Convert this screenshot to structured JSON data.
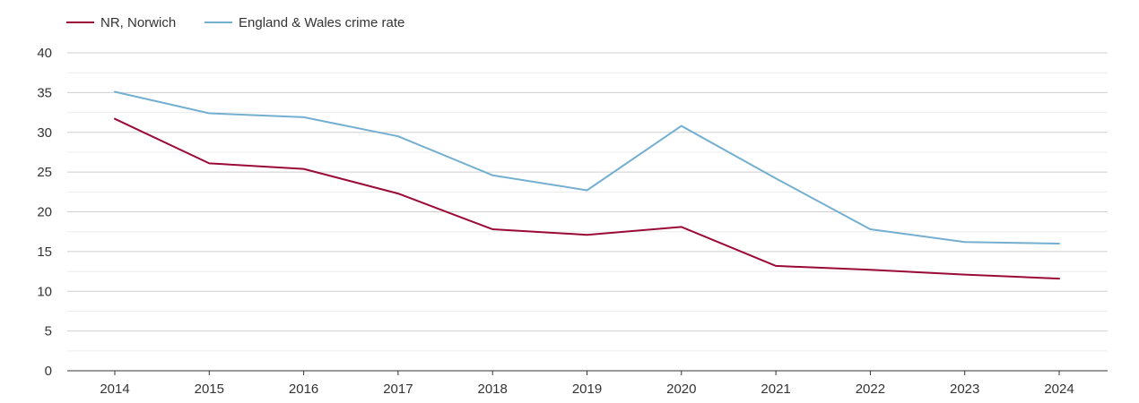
{
  "chart_data": {
    "type": "line",
    "title": "",
    "xlabel": "",
    "ylabel": "",
    "categories": [
      "2014",
      "2015",
      "2016",
      "2017",
      "2018",
      "2019",
      "2020",
      "2021",
      "2022",
      "2023",
      "2024"
    ],
    "ylim": [
      0,
      40
    ],
    "yticks": [
      "0",
      "5",
      "10",
      "15",
      "20",
      "25",
      "30",
      "35",
      "40"
    ],
    "grid": true,
    "legend_position": "top-left",
    "series": [
      {
        "name": "NR, Norwich",
        "color": "#9b0a36",
        "values": [
          31.7,
          26.1,
          25.4,
          22.3,
          17.8,
          17.1,
          18.1,
          13.2,
          12.7,
          12.1,
          11.6
        ]
      },
      {
        "name": "England & Wales crime rate",
        "color": "#74afd0",
        "values": [
          35.1,
          32.4,
          31.9,
          29.5,
          24.6,
          22.7,
          30.8,
          24.2,
          17.8,
          16.2,
          16.0
        ]
      }
    ]
  }
}
